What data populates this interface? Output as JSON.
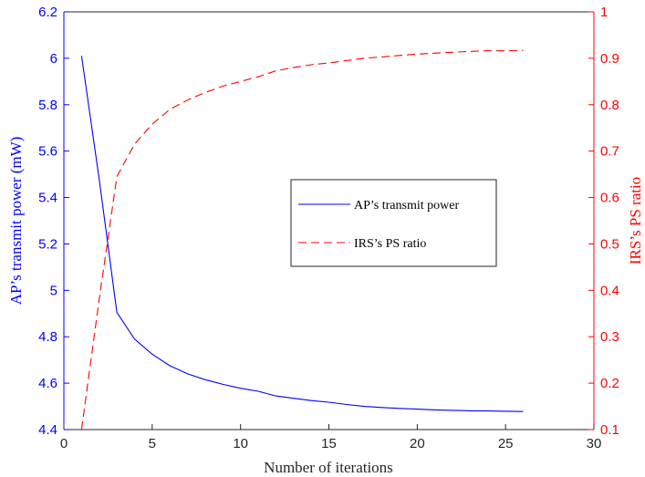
{
  "chart_data": {
    "type": "line",
    "xlabel": "Number of iterations",
    "ylabel_left": "AP’s transmit power (mW)",
    "ylabel_right": "IRS’s PS ratio",
    "xlim": [
      0,
      30
    ],
    "ylim_left": [
      4.4,
      6.2
    ],
    "ylim_right": [
      0.1,
      1.0
    ],
    "x_ticks": [
      "0",
      "5",
      "10",
      "15",
      "20",
      "25",
      "30"
    ],
    "y_ticks_left": [
      "4.4",
      "4.6",
      "4.8",
      "5",
      "5.2",
      "5.4",
      "5.6",
      "5.8",
      "6",
      "6.2"
    ],
    "y_ticks_right": [
      "0.1",
      "0.2",
      "0.3",
      "0.4",
      "0.5",
      "0.6",
      "0.7",
      "0.8",
      "0.9",
      "1"
    ],
    "legend_position": "center-right",
    "grid": false,
    "series": [
      {
        "name": "AP’s transmit power",
        "axis": "left",
        "color": "#0000ff",
        "style": "solid",
        "x": [
          1,
          2,
          3,
          4,
          5,
          6,
          7,
          8,
          9,
          10,
          11,
          12,
          13,
          14,
          15,
          16,
          17,
          18,
          19,
          20,
          21,
          22,
          23,
          24,
          25,
          26
        ],
        "values": [
          6.01,
          5.48,
          4.905,
          4.79,
          4.725,
          4.675,
          4.64,
          4.615,
          4.595,
          4.578,
          4.565,
          4.545,
          4.535,
          4.525,
          4.518,
          4.508,
          4.5,
          4.495,
          4.491,
          4.488,
          4.485,
          4.483,
          4.481,
          4.48,
          4.479,
          4.478
        ]
      },
      {
        "name": "IRS’s PS ratio",
        "axis": "right",
        "color": "#ff0000",
        "style": "dashed",
        "x": [
          1,
          2,
          3,
          4,
          5,
          6,
          7,
          8,
          9,
          10,
          11,
          12,
          13,
          14,
          15,
          16,
          17,
          18,
          19,
          20,
          21,
          22,
          23,
          24,
          25,
          26
        ],
        "values": [
          0.1,
          0.38,
          0.645,
          0.715,
          0.758,
          0.79,
          0.81,
          0.826,
          0.84,
          0.85,
          0.86,
          0.873,
          0.88,
          0.886,
          0.89,
          0.895,
          0.9,
          0.903,
          0.906,
          0.909,
          0.911,
          0.913,
          0.915,
          0.916,
          0.916,
          0.917
        ]
      }
    ]
  }
}
